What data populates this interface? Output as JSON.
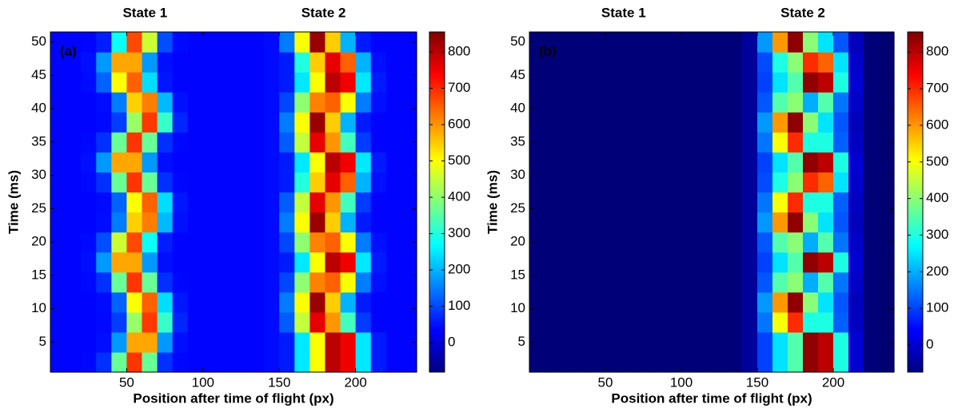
{
  "chart_data": [
    {
      "type": "heatmap",
      "panel_label": "(a)",
      "annotations": [
        "State 1",
        "State 2"
      ],
      "x_label": "Position after time of flight (px)",
      "y_label": "Time (ms)",
      "colormap": "jet",
      "x": [
        5,
        15,
        25,
        35,
        45,
        55,
        65,
        75,
        85,
        95,
        105,
        115,
        125,
        135,
        145,
        155,
        165,
        175,
        185,
        195,
        205,
        215,
        225,
        235
      ],
      "y": [
        2,
        5,
        8,
        11,
        14,
        17,
        20,
        23,
        26,
        29,
        32,
        35,
        38,
        41,
        44,
        47,
        50
      ],
      "xlim": [
        0,
        240
      ],
      "ylim": [
        0.5,
        51.5
      ],
      "xticks": [
        50,
        100,
        150,
        200
      ],
      "yticks": [
        5,
        10,
        15,
        20,
        25,
        30,
        35,
        40,
        45,
        50
      ],
      "clim": [
        -81,
        855
      ],
      "cticks": [
        0,
        100,
        200,
        300,
        400,
        500,
        600,
        700,
        800
      ],
      "z": [
        [
          40,
          40,
          42,
          80,
          365,
          690,
          365,
          80,
          42,
          40,
          40,
          40,
          40,
          40,
          45,
          60,
          250,
          500,
          800,
          750,
          250,
          60,
          40,
          40
        ],
        [
          40,
          40,
          40,
          49,
          176,
          586,
          586,
          176,
          49,
          40,
          40,
          40,
          40,
          40,
          45,
          60,
          250,
          500,
          800,
          750,
          250,
          60,
          40,
          40
        ],
        [
          40,
          40,
          40,
          43,
          92,
          410,
          687,
          320,
          70,
          40,
          40,
          40,
          40,
          40,
          45,
          120,
          450,
          760,
          600,
          330,
          90,
          40,
          40,
          40
        ],
        [
          40,
          40,
          40,
          45,
          127,
          502,
          650,
          240,
          56,
          40,
          40,
          40,
          40,
          40,
          45,
          150,
          500,
          830,
          550,
          200,
          60,
          40,
          40,
          40
        ],
        [
          40,
          40,
          42,
          80,
          365,
          690,
          365,
          80,
          42,
          40,
          40,
          40,
          40,
          40,
          45,
          100,
          400,
          620,
          650,
          500,
          150,
          50,
          40,
          40
        ],
        [
          40,
          40,
          49,
          176,
          586,
          586,
          176,
          49,
          40,
          40,
          40,
          40,
          40,
          40,
          45,
          60,
          250,
          500,
          800,
          750,
          250,
          60,
          40,
          40
        ],
        [
          40,
          40,
          43,
          108,
          456,
          672,
          279,
          62,
          40,
          40,
          40,
          40,
          40,
          40,
          45,
          100,
          400,
          620,
          650,
          500,
          150,
          50,
          40,
          40
        ],
        [
          40,
          40,
          40,
          47,
          150,
          547,
          622,
          206,
          51,
          40,
          40,
          40,
          40,
          40,
          45,
          150,
          500,
          830,
          550,
          200,
          60,
          40,
          40,
          40
        ],
        [
          40,
          40,
          40,
          45,
          127,
          502,
          650,
          240,
          56,
          40,
          40,
          40,
          40,
          40,
          45,
          120,
          450,
          760,
          600,
          330,
          90,
          40,
          40,
          40
        ],
        [
          40,
          40,
          42,
          80,
          365,
          690,
          365,
          80,
          42,
          40,
          40,
          40,
          40,
          40,
          45,
          60,
          300,
          550,
          760,
          650,
          200,
          50,
          40,
          40
        ],
        [
          40,
          40,
          49,
          176,
          586,
          586,
          176,
          49,
          40,
          40,
          40,
          40,
          40,
          40,
          45,
          60,
          250,
          500,
          800,
          750,
          250,
          60,
          40,
          40
        ],
        [
          40,
          40,
          42,
          80,
          365,
          690,
          365,
          80,
          42,
          40,
          40,
          40,
          40,
          40,
          45,
          120,
          450,
          760,
          600,
          330,
          90,
          40,
          40,
          40
        ],
        [
          40,
          40,
          40,
          43,
          92,
          410,
          687,
          320,
          70,
          40,
          40,
          40,
          40,
          40,
          45,
          150,
          500,
          830,
          550,
          200,
          60,
          40,
          40,
          40
        ],
        [
          40,
          40,
          40,
          47,
          150,
          547,
          622,
          206,
          51,
          40,
          40,
          40,
          40,
          40,
          45,
          100,
          400,
          620,
          650,
          500,
          150,
          50,
          40,
          40
        ],
        [
          40,
          40,
          45,
          127,
          502,
          650,
          240,
          56,
          40,
          40,
          40,
          40,
          40,
          40,
          45,
          60,
          250,
          500,
          800,
          750,
          250,
          60,
          40,
          40
        ],
        [
          40,
          40,
          49,
          176,
          586,
          586,
          176,
          49,
          40,
          40,
          40,
          40,
          40,
          40,
          45,
          60,
          300,
          550,
          760,
          650,
          200,
          50,
          40,
          40
        ],
        [
          40,
          40,
          41,
          62,
          279,
          672,
          456,
          108,
          44,
          40,
          40,
          40,
          40,
          40,
          45,
          150,
          500,
          830,
          550,
          200,
          60,
          40,
          40,
          40
        ]
      ]
    },
    {
      "type": "heatmap",
      "panel_label": "(b)",
      "annotations": [
        "State 1",
        "State 2"
      ],
      "x_label": "Position after time of flight (px)",
      "y_label": "Time (ms)",
      "colormap": "jet",
      "x": [
        5,
        15,
        25,
        35,
        45,
        55,
        65,
        75,
        85,
        95,
        105,
        115,
        125,
        135,
        145,
        155,
        165,
        175,
        185,
        195,
        205,
        215,
        225,
        235
      ],
      "y": [
        2,
        5,
        8,
        11,
        14,
        17,
        20,
        23,
        26,
        29,
        32,
        35,
        38,
        41,
        44,
        47,
        50
      ],
      "xlim": [
        0,
        240
      ],
      "ylim": [
        0.5,
        51.5
      ],
      "xticks": [
        50,
        100,
        150,
        200
      ],
      "yticks": [
        5,
        10,
        15,
        20,
        25,
        30,
        35,
        40,
        45,
        50
      ],
      "clim": [
        -74,
        855
      ],
      "cticks": [
        0,
        100,
        200,
        300,
        400,
        500,
        600,
        700,
        800
      ],
      "z": [
        [
          -80,
          -80,
          -80,
          -80,
          -80,
          -80,
          -80,
          -80,
          -80,
          -80,
          -80,
          -80,
          -80,
          -80,
          -50,
          100,
          250,
          350,
          840,
          800,
          300,
          0,
          -80,
          -85
        ],
        [
          -80,
          -80,
          -80,
          -80,
          -80,
          -80,
          -80,
          -80,
          -80,
          -80,
          -80,
          -80,
          -80,
          -80,
          -50,
          100,
          250,
          350,
          840,
          800,
          300,
          0,
          -80,
          -85
        ],
        [
          -80,
          -80,
          -80,
          -80,
          -80,
          -80,
          -80,
          -80,
          -80,
          -80,
          -80,
          -80,
          -80,
          -80,
          -50,
          150,
          500,
          700,
          300,
          300,
          130,
          -15,
          -80,
          -85
        ],
        [
          -80,
          -80,
          -80,
          -80,
          -80,
          -80,
          -80,
          -80,
          -80,
          -80,
          -80,
          -80,
          -80,
          -80,
          -50,
          180,
          600,
          840,
          400,
          250,
          120,
          -20,
          -80,
          -85
        ],
        [
          -80,
          -80,
          -80,
          -80,
          -80,
          -80,
          -80,
          -80,
          -80,
          -80,
          -80,
          -80,
          -80,
          -80,
          -50,
          120,
          350,
          400,
          200,
          350,
          150,
          -10,
          -80,
          -85
        ],
        [
          -80,
          -80,
          -80,
          -80,
          -80,
          -80,
          -80,
          -80,
          -80,
          -80,
          -80,
          -80,
          -80,
          -80,
          -50,
          100,
          250,
          350,
          840,
          800,
          300,
          0,
          -80,
          -85
        ],
        [
          -80,
          -80,
          -80,
          -80,
          -80,
          -80,
          -80,
          -80,
          -80,
          -80,
          -80,
          -80,
          -80,
          -80,
          -50,
          120,
          350,
          400,
          200,
          350,
          150,
          -10,
          -80,
          -85
        ],
        [
          -80,
          -80,
          -80,
          -80,
          -80,
          -80,
          -80,
          -80,
          -80,
          -80,
          -80,
          -80,
          -80,
          -80,
          -50,
          180,
          600,
          840,
          400,
          250,
          120,
          -20,
          -80,
          -85
        ],
        [
          -80,
          -80,
          -80,
          -80,
          -80,
          -80,
          -80,
          -80,
          -80,
          -80,
          -80,
          -80,
          -80,
          -80,
          -50,
          150,
          500,
          700,
          300,
          300,
          130,
          -15,
          -80,
          -85
        ],
        [
          -80,
          -80,
          -80,
          -80,
          -80,
          -80,
          -80,
          -80,
          -80,
          -80,
          -80,
          -80,
          -80,
          -80,
          -50,
          110,
          300,
          400,
          700,
          650,
          250,
          -5,
          -80,
          -85
        ],
        [
          -80,
          -80,
          -80,
          -80,
          -80,
          -80,
          -80,
          -80,
          -80,
          -80,
          -80,
          -80,
          -80,
          -80,
          -50,
          100,
          250,
          350,
          840,
          800,
          300,
          0,
          -80,
          -85
        ],
        [
          -80,
          -80,
          -80,
          -80,
          -80,
          -80,
          -80,
          -80,
          -80,
          -80,
          -80,
          -80,
          -80,
          -80,
          -50,
          150,
          500,
          700,
          300,
          300,
          130,
          -15,
          -80,
          -85
        ],
        [
          -80,
          -80,
          -80,
          -80,
          -80,
          -80,
          -80,
          -80,
          -80,
          -80,
          -80,
          -80,
          -80,
          -80,
          -50,
          180,
          600,
          840,
          400,
          250,
          120,
          -20,
          -80,
          -85
        ],
        [
          -80,
          -80,
          -80,
          -80,
          -80,
          -80,
          -80,
          -80,
          -80,
          -80,
          -80,
          -80,
          -80,
          -80,
          -50,
          120,
          350,
          400,
          200,
          350,
          150,
          -10,
          -80,
          -85
        ],
        [
          -80,
          -80,
          -80,
          -80,
          -80,
          -80,
          -80,
          -80,
          -80,
          -80,
          -80,
          -80,
          -80,
          -80,
          -50,
          100,
          250,
          350,
          840,
          800,
          300,
          0,
          -80,
          -85
        ],
        [
          -80,
          -80,
          -80,
          -80,
          -80,
          -80,
          -80,
          -80,
          -80,
          -80,
          -80,
          -80,
          -80,
          -80,
          -50,
          110,
          300,
          400,
          700,
          650,
          250,
          -5,
          -80,
          -85
        ],
        [
          -80,
          -80,
          -80,
          -80,
          -80,
          -80,
          -80,
          -80,
          -80,
          -80,
          -80,
          -80,
          -80,
          -80,
          -50,
          180,
          600,
          840,
          400,
          250,
          120,
          -20,
          -80,
          -85
        ]
      ]
    }
  ]
}
